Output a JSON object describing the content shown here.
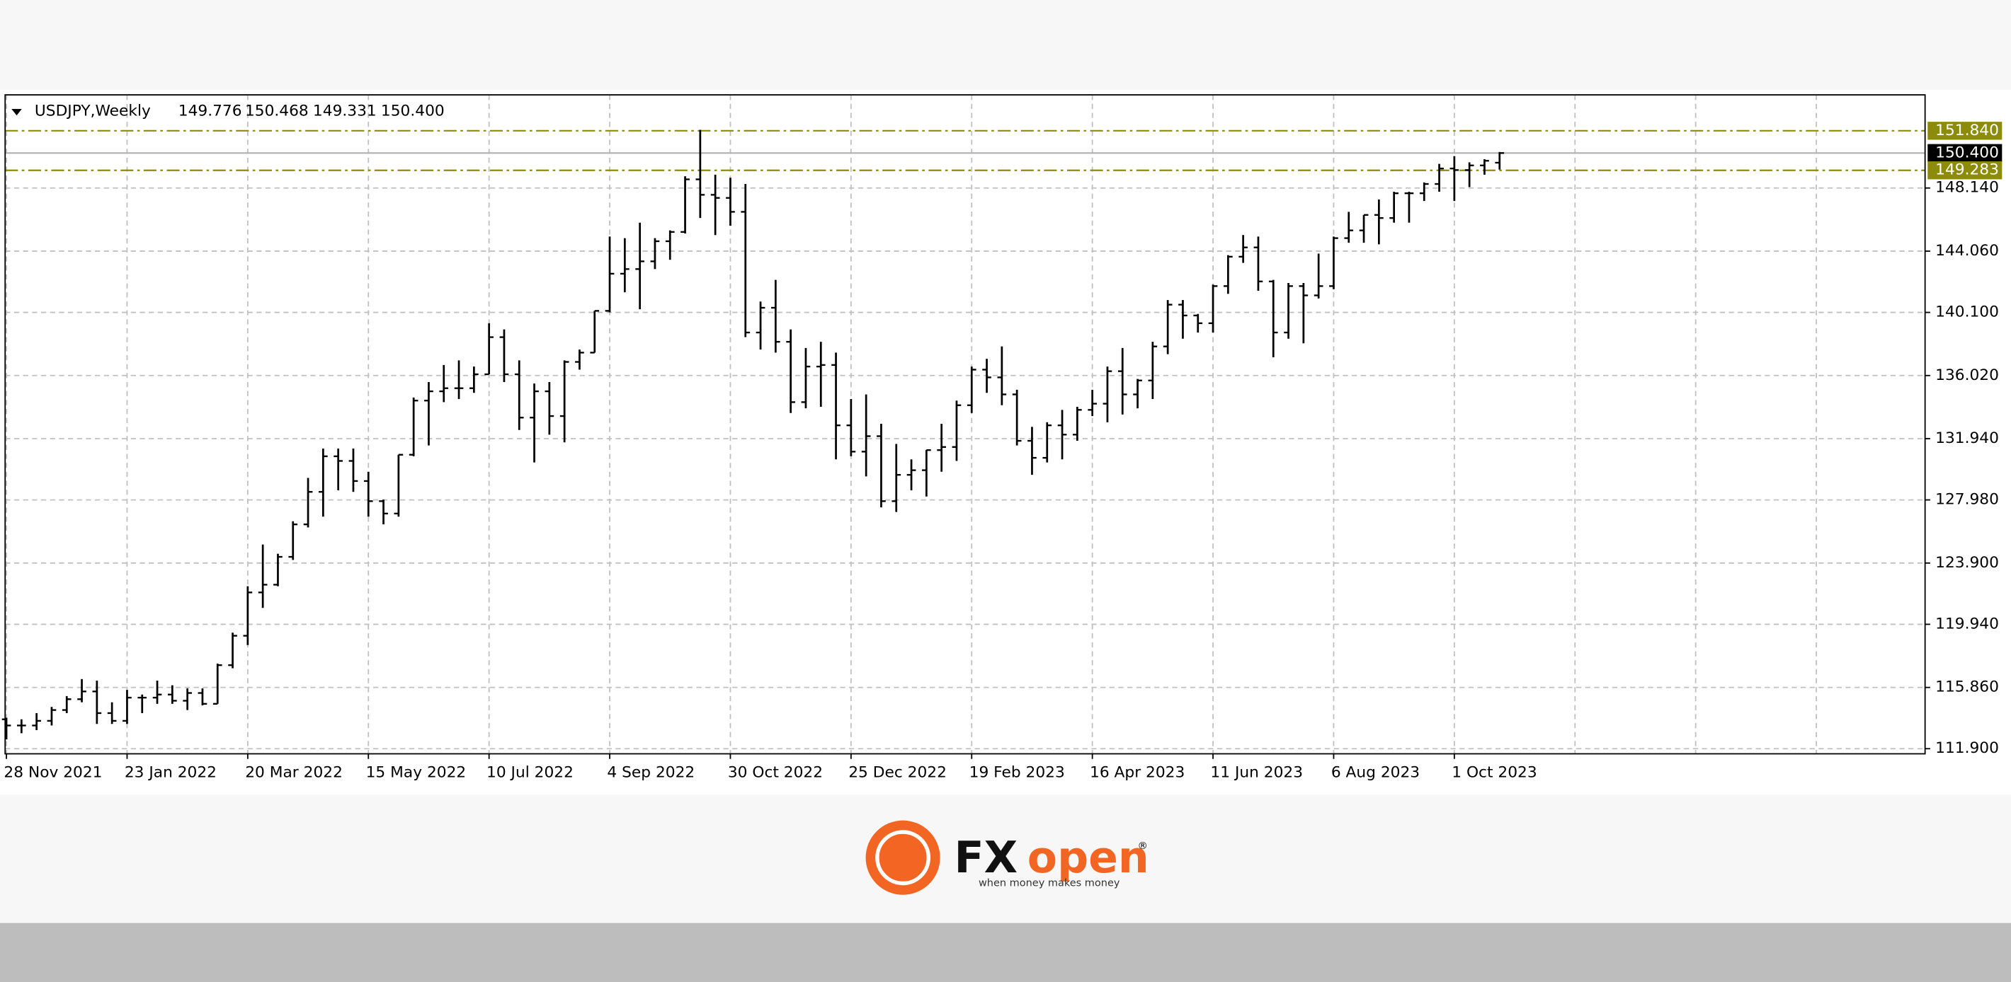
{
  "header": {
    "symbol": "USDJPY,Weekly",
    "ohlc": [
      "149.776",
      "150.468",
      "149.331",
      "150.400"
    ]
  },
  "chart_data": {
    "type": "ohlc",
    "color": "#000000",
    "grid": true,
    "categories": [
      "28 Nov 2021",
      null,
      null,
      null,
      null,
      null,
      null,
      null,
      "23 Jan 2022",
      null,
      null,
      null,
      null,
      null,
      null,
      null,
      "20 Mar 2022",
      null,
      null,
      null,
      null,
      null,
      null,
      null,
      "15 May 2022",
      null,
      null,
      null,
      null,
      null,
      null,
      null,
      "10 Jul 2022",
      null,
      null,
      null,
      null,
      null,
      null,
      null,
      "4 Sep 2022",
      null,
      null,
      null,
      null,
      null,
      null,
      null,
      "30 Oct 2022",
      null,
      null,
      null,
      null,
      null,
      null,
      null,
      "25 Dec 2022",
      null,
      null,
      null,
      null,
      null,
      null,
      null,
      "19 Feb 2023",
      null,
      null,
      null,
      null,
      null,
      null,
      null,
      "16 Apr 2023",
      null,
      null,
      null,
      null,
      null,
      null,
      null,
      "11 Jun 2023",
      null,
      null,
      null,
      null,
      null,
      null,
      null,
      "6 Aug 2023",
      null,
      null,
      null,
      null,
      null,
      null,
      null,
      "1 Oct 2023",
      null,
      null,
      null
    ],
    "open": [
      113.8,
      113.4,
      113.4,
      113.7,
      114.4,
      115.1,
      115.6,
      114.2,
      113.7,
      115.2,
      115.2,
      115.4,
      115.0,
      115.5,
      114.8,
      117.3,
      119.2,
      122.0,
      122.5,
      124.3,
      126.4,
      128.5,
      130.8,
      130.5,
      129.2,
      127.9,
      127.1,
      130.9,
      134.4,
      135.0,
      135.2,
      135.2,
      136.1,
      138.5,
      136.1,
      133.3,
      135.0,
      133.4,
      136.9,
      137.5,
      140.2,
      142.6,
      142.9,
      143.4,
      144.7,
      145.3,
      148.7,
      147.7,
      147.5,
      146.6,
      138.8,
      140.4,
      138.2,
      134.3,
      136.6,
      136.7,
      132.8,
      131.1,
      132.1,
      127.9,
      129.6,
      129.9,
      131.2,
      131.4,
      134.1,
      136.4,
      135.9,
      134.8,
      131.8,
      130.7,
      132.8,
      132.2,
      133.8,
      134.2,
      136.3,
      134.8,
      135.7,
      137.9,
      140.6,
      139.9,
      139.4,
      141.8,
      143.7,
      144.3,
      142.1,
      138.8,
      141.8,
      141.2,
      141.8,
      144.9,
      145.4,
      146.4,
      146.2,
      147.8,
      147.8,
      148.4,
      149.4,
      149.3,
      149.6,
      149.776
    ],
    "high": [
      113.9,
      113.8,
      114.2,
      114.6,
      115.3,
      116.4,
      116.3,
      114.9,
      115.7,
      115.4,
      116.3,
      116.0,
      115.8,
      115.8,
      117.4,
      119.4,
      122.4,
      125.1,
      124.5,
      126.6,
      129.4,
      131.3,
      131.3,
      131.3,
      129.8,
      128.0,
      130.9,
      134.6,
      135.6,
      136.7,
      137.0,
      136.6,
      139.4,
      139.0,
      137.0,
      135.5,
      135.6,
      137.0,
      137.7,
      140.2,
      145.0,
      144.9,
      145.9,
      144.9,
      145.4,
      148.9,
      151.9,
      149.0,
      148.8,
      148.4,
      140.8,
      142.2,
      139.0,
      137.8,
      138.2,
      137.5,
      134.5,
      134.8,
      132.9,
      131.6,
      130.6,
      131.2,
      132.9,
      134.4,
      136.6,
      137.1,
      137.9,
      135.1,
      132.7,
      133.0,
      133.8,
      134.0,
      135.1,
      136.6,
      137.8,
      135.8,
      138.2,
      140.9,
      140.9,
      140.0,
      141.9,
      143.8,
      145.1,
      145.0,
      142.2,
      142.0,
      142.0,
      143.9,
      145.0,
      146.6,
      146.4,
      147.4,
      147.9,
      147.9,
      148.5,
      149.7,
      150.2,
      149.8,
      150.0,
      150.468
    ],
    "low": [
      112.5,
      112.9,
      113.1,
      113.4,
      114.2,
      114.9,
      113.5,
      113.5,
      113.5,
      114.2,
      114.8,
      114.8,
      114.4,
      114.7,
      114.8,
      117.1,
      118.6,
      121.0,
      122.4,
      124.1,
      126.2,
      126.9,
      128.6,
      128.5,
      126.9,
      126.4,
      126.9,
      130.8,
      131.5,
      134.3,
      134.5,
      134.9,
      136.1,
      135.6,
      132.5,
      130.4,
      132.2,
      131.7,
      136.4,
      137.5,
      140.1,
      141.4,
      140.3,
      142.9,
      143.5,
      145.2,
      146.2,
      145.1,
      145.7,
      138.5,
      137.7,
      137.5,
      133.6,
      133.9,
      134.0,
      130.6,
      130.8,
      129.5,
      127.5,
      127.2,
      128.6,
      128.2,
      129.8,
      130.5,
      133.6,
      134.9,
      134.1,
      131.5,
      129.6,
      130.4,
      130.6,
      131.8,
      133.4,
      133.0,
      133.5,
      133.9,
      134.5,
      137.4,
      138.4,
      138.8,
      138.8,
      141.3,
      143.3,
      141.5,
      137.2,
      138.4,
      138.1,
      141.0,
      141.6,
      144.6,
      144.6,
      144.5,
      145.9,
      145.9,
      147.3,
      147.9,
      147.3,
      148.2,
      149.0,
      149.331
    ],
    "close": [
      113.4,
      113.4,
      113.7,
      114.4,
      115.1,
      115.6,
      114.2,
      113.7,
      115.2,
      115.2,
      115.4,
      115.0,
      115.5,
      114.8,
      117.3,
      119.2,
      122.0,
      122.5,
      124.3,
      126.4,
      128.5,
      130.8,
      130.5,
      129.2,
      127.9,
      127.1,
      130.9,
      134.4,
      135.0,
      135.2,
      135.2,
      136.1,
      138.5,
      136.1,
      133.3,
      135.0,
      133.4,
      136.9,
      137.5,
      140.2,
      142.6,
      142.9,
      143.4,
      144.7,
      145.3,
      148.7,
      147.7,
      147.5,
      146.6,
      138.8,
      140.4,
      138.2,
      134.3,
      136.6,
      136.7,
      132.8,
      131.1,
      132.1,
      127.9,
      129.6,
      129.9,
      131.2,
      131.4,
      134.1,
      136.4,
      135.9,
      134.8,
      131.8,
      130.7,
      132.8,
      132.2,
      133.8,
      134.2,
      136.3,
      134.8,
      135.7,
      137.9,
      140.6,
      139.9,
      139.4,
      141.8,
      143.7,
      144.3,
      142.1,
      138.8,
      141.8,
      141.2,
      141.8,
      144.9,
      145.4,
      146.4,
      146.2,
      147.8,
      147.8,
      148.4,
      149.4,
      149.3,
      149.6,
      149.9,
      150.4
    ],
    "ylim": [
      111.57,
      154.16
    ],
    "yticks": [
      {
        "value": 111.9,
        "label": "111.900"
      },
      {
        "value": 115.86,
        "label": "115.860"
      },
      {
        "value": 119.94,
        "label": "119.940"
      },
      {
        "value": 123.9,
        "label": "123.900"
      },
      {
        "value": 127.98,
        "label": "127.980"
      },
      {
        "value": 131.94,
        "label": "131.940"
      },
      {
        "value": 136.02,
        "label": "136.020"
      },
      {
        "value": 140.1,
        "label": "140.100"
      },
      {
        "value": 144.06,
        "label": "144.060"
      },
      {
        "value": 148.14,
        "label": "148.140"
      }
    ],
    "levels": [
      {
        "value": 151.84,
        "label": "151.840",
        "color": "#8c8c0a"
      },
      {
        "value": 150.4,
        "label": "150.400",
        "color": "#000000"
      },
      {
        "value": 149.283,
        "label": "149.283",
        "color": "#8c8c0a"
      }
    ]
  },
  "logo": {
    "brand_a": "FX",
    "brand_b": "open",
    "mark": "®",
    "tagline": "when money makes money"
  }
}
